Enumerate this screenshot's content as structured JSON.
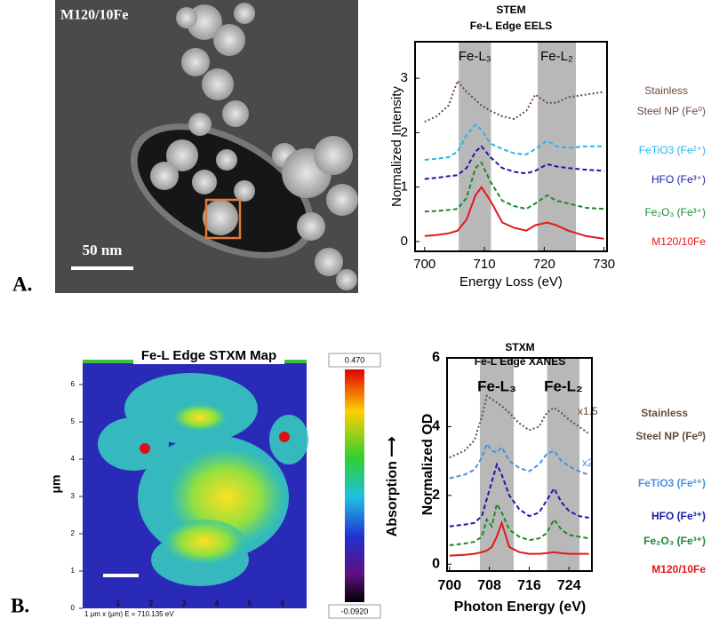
{
  "panel_labels": [
    "A.",
    "B."
  ],
  "panel_a_image": {
    "label": "M120/10Fe",
    "scale_bar": "50 nm"
  },
  "stxm_map": {
    "title": "Fe-L Edge STXM Map",
    "ylabel": "μm",
    "xticks": [
      1,
      2,
      3,
      4,
      5,
      6
    ],
    "yticks": [
      0,
      1,
      2,
      3,
      4,
      5,
      6
    ],
    "footer": "1 μm  x (μm)     E = 710.135 eV",
    "colorbar": {
      "label": "Absorption ⟶",
      "max": {
        "value": 0.47,
        "label": "0.470"
      },
      "min": {
        "value": -0.092,
        "label": "-0.0920"
      }
    }
  },
  "chart_data": [
    {
      "type": "line",
      "title": "STEM",
      "subtitle": "Fe-L Edge EELS",
      "x_label": "Energy Loss (eV)",
      "y_label": "Normalized Intensity",
      "xlim": [
        698.4,
        730.5
      ],
      "ylim": [
        -0.18,
        3.67
      ],
      "xticks": [
        700,
        710,
        720,
        730
      ],
      "yticks": [
        0,
        1,
        2,
        3
      ],
      "bands": [
        {
          "label": "Fe-L₃",
          "range": [
            705.7,
            711.1
          ]
        },
        {
          "label": "Fe-L₂",
          "range": [
            718.9,
            725.3
          ]
        }
      ],
      "x": [
        700,
        702,
        704,
        705.5,
        707,
        708.5,
        709.5,
        711,
        713,
        715,
        717,
        718.5,
        720.5,
        722,
        724,
        727,
        730
      ],
      "series": [
        {
          "name": "Stainless Steel NP (Fe⁰)",
          "color": "#6b4a3a",
          "style": "dotted",
          "values": [
            2.2,
            2.3,
            2.5,
            2.95,
            2.75,
            2.6,
            2.5,
            2.4,
            2.3,
            2.25,
            2.4,
            2.7,
            2.55,
            2.55,
            2.65,
            2.7,
            2.75
          ]
        },
        {
          "name": "FeTiO3 (Fe²⁺)",
          "color": "#27b5e8",
          "style": "dashed",
          "values": [
            1.5,
            1.52,
            1.55,
            1.65,
            1.95,
            2.15,
            2.05,
            1.8,
            1.7,
            1.62,
            1.6,
            1.7,
            1.85,
            1.75,
            1.72,
            1.75,
            1.75
          ]
        },
        {
          "name": "HFO (Fe³⁺)",
          "color": "#1a1aa8",
          "style": "dashed",
          "values": [
            1.15,
            1.17,
            1.2,
            1.22,
            1.35,
            1.65,
            1.75,
            1.55,
            1.35,
            1.28,
            1.25,
            1.3,
            1.42,
            1.38,
            1.35,
            1.32,
            1.3
          ]
        },
        {
          "name": "Fe₂O₃ (Fe³⁺)",
          "color": "#1a8a2a",
          "style": "dashed",
          "values": [
            0.55,
            0.56,
            0.58,
            0.6,
            0.8,
            1.35,
            1.45,
            1.1,
            0.75,
            0.65,
            0.6,
            0.7,
            0.85,
            0.75,
            0.7,
            0.62,
            0.6
          ]
        },
        {
          "name": "M120/10Fe",
          "color": "#e0191c",
          "style": "solid",
          "values": [
            0.1,
            0.12,
            0.15,
            0.2,
            0.4,
            0.85,
            1.0,
            0.75,
            0.35,
            0.25,
            0.2,
            0.3,
            0.35,
            0.3,
            0.2,
            0.1,
            0.05
          ]
        }
      ]
    },
    {
      "type": "line",
      "title": "STXM",
      "subtitle": "Fe-L Edge XANES",
      "x_label": "Photon Energy (eV)",
      "y_label": "Normalized OD",
      "xlim": [
        699.5,
        728.6
      ],
      "ylim": [
        -0.2,
        6
      ],
      "xticks": [
        700,
        708,
        716,
        724
      ],
      "yticks": [
        0,
        2,
        4,
        6
      ],
      "bands": [
        {
          "label": "Fe-L₃",
          "range": [
            706.1,
            712.9
          ]
        },
        {
          "label": "Fe-L₂",
          "range": [
            719.6,
            726.1
          ]
        }
      ],
      "annotations": [
        "x1.5",
        "x2"
      ],
      "x": [
        700,
        703,
        705,
        706.5,
        707.5,
        708.5,
        709.5,
        710.5,
        712,
        714,
        716,
        718,
        719.5,
        721,
        722.5,
        724,
        726,
        728
      ],
      "series": [
        {
          "name": "Stainless Steel NP (Fe⁰)",
          "color": "#6b4a3a",
          "style": "dotted",
          "values": [
            3.1,
            3.3,
            3.6,
            4.3,
            4.9,
            4.8,
            4.7,
            4.6,
            4.4,
            4.1,
            3.9,
            4.0,
            4.4,
            4.55,
            4.4,
            4.2,
            4.0,
            3.8
          ]
        },
        {
          "name": "FeTiO3 (Fe²⁺)",
          "color": "#4a90e2",
          "style": "dashed",
          "values": [
            2.5,
            2.6,
            2.75,
            3.1,
            3.5,
            3.3,
            3.25,
            3.4,
            3.0,
            2.8,
            2.7,
            2.9,
            3.2,
            3.3,
            3.0,
            2.85,
            2.7,
            2.6
          ]
        },
        {
          "name": "HFO (Fe³⁺)",
          "color": "#1a1aa8",
          "style": "dashed",
          "values": [
            1.1,
            1.15,
            1.2,
            1.4,
            1.9,
            2.4,
            2.9,
            2.6,
            2.0,
            1.6,
            1.4,
            1.5,
            1.85,
            2.2,
            1.8,
            1.55,
            1.4,
            1.35
          ]
        },
        {
          "name": "Fe₂O₃ (Fe³⁺)",
          "color": "#1a8a2a",
          "style": "dashed",
          "values": [
            0.55,
            0.6,
            0.65,
            0.8,
            1.3,
            1.1,
            1.75,
            1.5,
            1.0,
            0.8,
            0.7,
            0.75,
            0.9,
            1.3,
            1.0,
            0.85,
            0.8,
            0.75
          ]
        },
        {
          "name": "M120/10Fe",
          "color": "#e0191c",
          "style": "solid",
          "values": [
            0.25,
            0.27,
            0.3,
            0.35,
            0.4,
            0.5,
            0.8,
            1.2,
            0.5,
            0.35,
            0.3,
            0.3,
            0.32,
            0.35,
            0.32,
            0.3,
            0.3,
            0.3
          ]
        }
      ]
    }
  ]
}
